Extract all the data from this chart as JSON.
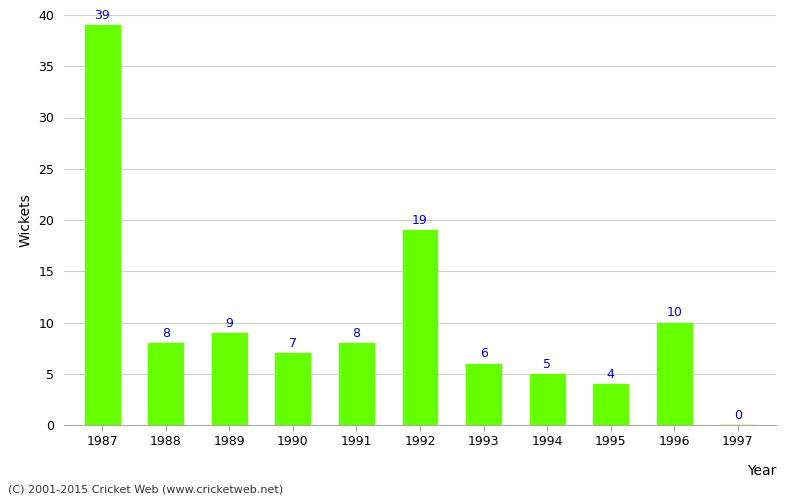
{
  "years": [
    "1987",
    "1988",
    "1989",
    "1990",
    "1991",
    "1992",
    "1993",
    "1994",
    "1995",
    "1996",
    "1997"
  ],
  "values": [
    39,
    8,
    9,
    7,
    8,
    19,
    6,
    5,
    4,
    10,
    0
  ],
  "bar_color": "#66ff00",
  "bar_edge_color": "#66ff00",
  "label_color": "#0000cc",
  "ylabel": "Wickets",
  "xlabel": "Year",
  "ylim": [
    0,
    40
  ],
  "yticks": [
    0,
    5,
    10,
    15,
    20,
    25,
    30,
    35,
    40
  ],
  "grid_color": "#cccccc",
  "background_color": "#ffffff",
  "footer_text": "(C) 2001-2015 Cricket Web (www.cricketweb.net)",
  "label_fontsize": 9,
  "axis_label_fontsize": 10,
  "tick_fontsize": 9,
  "footer_fontsize": 8,
  "bar_width": 0.55
}
